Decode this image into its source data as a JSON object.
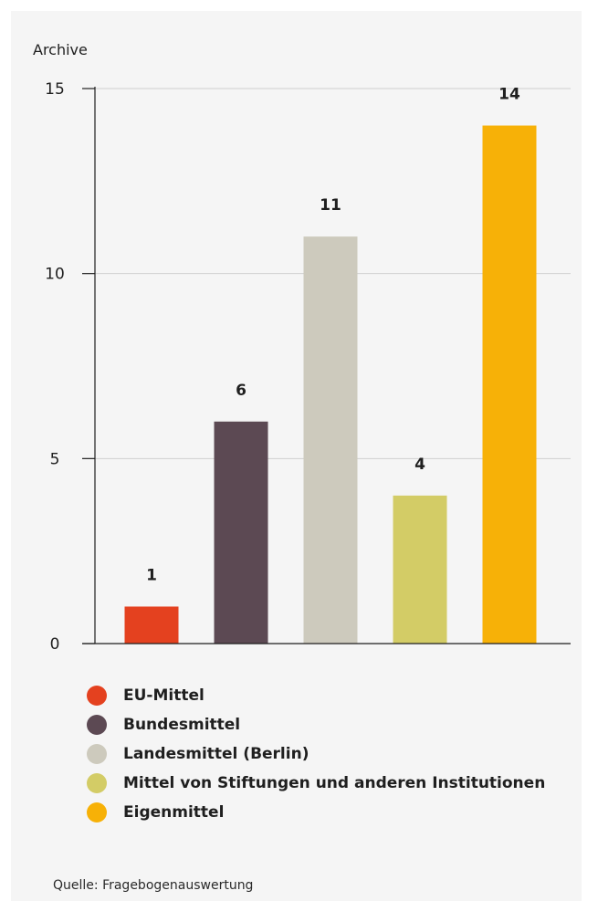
{
  "chart_data": {
    "type": "bar",
    "ylabel": "Archive",
    "categories": [
      "EU-Mittel",
      "Bundesmittel",
      "Landesmittel (Berlin)",
      "Mittel von Stiftungen und anderen Institutionen",
      "Eigenmittel"
    ],
    "values": [
      1,
      6,
      11,
      4,
      14
    ],
    "data_labels": [
      "1",
      "6",
      "11",
      "4",
      "14"
    ],
    "colors": [
      "#e4411f",
      "#5c4953",
      "#cdcabd",
      "#d3cc66",
      "#f7b107"
    ],
    "ylim": [
      0,
      15
    ],
    "yticks": [
      0,
      5,
      10,
      15
    ],
    "ytick_labels": [
      "0",
      "5",
      "10",
      "15"
    ],
    "grid": true,
    "legend_position": "bottom"
  },
  "legend": {
    "items": [
      {
        "label": "EU-Mittel",
        "color": "#e4411f"
      },
      {
        "label": "Bundesmittel",
        "color": "#5c4953"
      },
      {
        "label": "Landesmittel (Berlin)",
        "color": "#cdcabd"
      },
      {
        "label": "Mittel von Stiftungen und anderen Institutionen",
        "color": "#d3cc66"
      },
      {
        "label": "Eigenmittel",
        "color": "#f7b107"
      }
    ]
  },
  "source": "Quelle: Fragebogenauswertung"
}
